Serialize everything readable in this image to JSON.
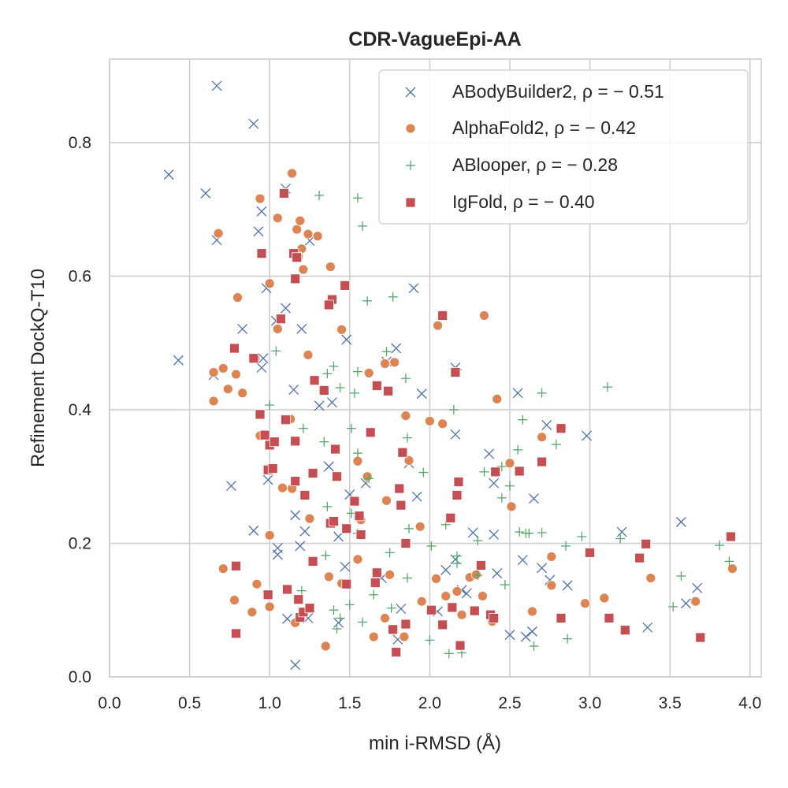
{
  "chart_data": {
    "type": "scatter",
    "title": "CDR-VagueEpi-AA",
    "xlabel": "min i-RMSD (Å)",
    "ylabel": "Refinement DockQ-T10",
    "xlim": [
      0.0,
      4.07
    ],
    "ylim": [
      0.0,
      0.925
    ],
    "xticks": [
      "0.0",
      "0.5",
      "1.0",
      "1.5",
      "2.0",
      "2.5",
      "3.0",
      "3.5",
      "4.0"
    ],
    "yticks": [
      "0.0",
      "0.2",
      "0.4",
      "0.6",
      "0.8"
    ],
    "grid": true,
    "legend_position": "top-right",
    "series": [
      {
        "name": "ABodyBuilder2, ρ = − 0.51",
        "marker": "x",
        "color": "#4c72b0",
        "points": [
          [
            0.67,
            0.885
          ],
          [
            0.9,
            0.828
          ],
          [
            0.37,
            0.752
          ],
          [
            0.6,
            0.724
          ],
          [
            0.67,
            0.654
          ],
          [
            0.93,
            0.667
          ],
          [
            0.95,
            0.697
          ],
          [
            1.1,
            0.731
          ],
          [
            0.98,
            0.582
          ],
          [
            1.25,
            0.653
          ],
          [
            1.1,
            0.552
          ],
          [
            1.04,
            0.533
          ],
          [
            1.2,
            0.521
          ],
          [
            0.83,
            0.521
          ],
          [
            0.43,
            0.474
          ],
          [
            0.65,
            0.452
          ],
          [
            0.95,
            0.463
          ],
          [
            0.96,
            0.477
          ],
          [
            1.15,
            0.43
          ],
          [
            1.31,
            0.406
          ],
          [
            1.39,
            0.411
          ],
          [
            1.48,
            0.505
          ],
          [
            1.73,
            0.472
          ],
          [
            1.79,
            0.492
          ],
          [
            1.9,
            0.582
          ],
          [
            1.95,
            0.424
          ],
          [
            1.37,
            0.315
          ],
          [
            0.99,
            0.295
          ],
          [
            0.76,
            0.286
          ],
          [
            1.5,
            0.273
          ],
          [
            1.16,
            0.242
          ],
          [
            1.22,
            0.218
          ],
          [
            0.9,
            0.219
          ],
          [
            1.05,
            0.193
          ],
          [
            1.05,
            0.183
          ],
          [
            1.19,
            0.196
          ],
          [
            1.43,
            0.21
          ],
          [
            1.11,
            0.087
          ],
          [
            1.24,
            0.088
          ],
          [
            1.43,
            0.081
          ],
          [
            1.16,
            0.018
          ],
          [
            1.47,
            0.165
          ],
          [
            1.6,
            0.29
          ],
          [
            1.7,
            0.148
          ],
          [
            1.87,
            0.32
          ],
          [
            1.92,
            0.27
          ],
          [
            1.82,
            0.102
          ],
          [
            1.8,
            0.056
          ],
          [
            2.05,
            0.098
          ],
          [
            2.1,
            0.16
          ],
          [
            2.16,
            0.176
          ],
          [
            2.2,
            0.13
          ],
          [
            2.23,
            0.125
          ],
          [
            2.27,
            0.216
          ],
          [
            2.16,
            0.463
          ],
          [
            2.16,
            0.363
          ],
          [
            2.37,
            0.334
          ],
          [
            2.4,
            0.29
          ],
          [
            2.4,
            0.213
          ],
          [
            2.42,
            0.155
          ],
          [
            2.5,
            0.063
          ],
          [
            2.55,
            0.425
          ],
          [
            2.58,
            0.175
          ],
          [
            2.6,
            0.06
          ],
          [
            2.64,
            0.068
          ],
          [
            2.65,
            0.267
          ],
          [
            2.7,
            0.163
          ],
          [
            2.73,
            0.377
          ],
          [
            2.75,
            0.145
          ],
          [
            2.86,
            0.137
          ],
          [
            2.98,
            0.361
          ],
          [
            3.2,
            0.217
          ],
          [
            3.36,
            0.074
          ],
          [
            3.57,
            0.232
          ],
          [
            3.6,
            0.11
          ],
          [
            3.67,
            0.133
          ]
        ]
      },
      {
        "name": "AlphaFold2, ρ = − 0.42",
        "marker": "circle",
        "color": "#dd8452",
        "points": [
          [
            0.68,
            0.664
          ],
          [
            0.94,
            0.716
          ],
          [
            1.14,
            0.754
          ],
          [
            1.05,
            0.687
          ],
          [
            1.17,
            0.67
          ],
          [
            1.19,
            0.683
          ],
          [
            1.24,
            0.663
          ],
          [
            1.3,
            0.66
          ],
          [
            1.2,
            0.641
          ],
          [
            1.21,
            0.61
          ],
          [
            1.38,
            0.614
          ],
          [
            1.0,
            0.589
          ],
          [
            0.8,
            0.568
          ],
          [
            1.18,
            0.63
          ],
          [
            1.05,
            0.521
          ],
          [
            1.24,
            0.482
          ],
          [
            1.45,
            0.52
          ],
          [
            0.91,
            0.477
          ],
          [
            0.65,
            0.456
          ],
          [
            0.71,
            0.462
          ],
          [
            0.79,
            0.453
          ],
          [
            0.83,
            0.425
          ],
          [
            0.74,
            0.431
          ],
          [
            0.65,
            0.413
          ],
          [
            0.94,
            0.361
          ],
          [
            1.13,
            0.386
          ],
          [
            1.08,
            0.283
          ],
          [
            1.14,
            0.282
          ],
          [
            1.25,
            0.237
          ],
          [
            1.0,
            0.212
          ],
          [
            1.55,
            0.323
          ],
          [
            1.61,
            0.3
          ],
          [
            1.62,
            0.455
          ],
          [
            1.72,
            0.469
          ],
          [
            1.78,
            0.471
          ],
          [
            1.87,
            0.324
          ],
          [
            1.85,
            0.391
          ],
          [
            2.05,
            0.526
          ],
          [
            2.0,
            0.383
          ],
          [
            2.08,
            0.379
          ],
          [
            2.34,
            0.541
          ],
          [
            2.42,
            0.416
          ],
          [
            1.57,
            0.235
          ],
          [
            1.55,
            0.176
          ],
          [
            1.73,
            0.264
          ],
          [
            1.94,
            0.225
          ],
          [
            0.71,
            0.162
          ],
          [
            0.78,
            0.115
          ],
          [
            0.89,
            0.097
          ],
          [
            0.92,
            0.139
          ],
          [
            1.0,
            0.105
          ],
          [
            1.16,
            0.081
          ],
          [
            1.35,
            0.046
          ],
          [
            1.37,
            0.15
          ],
          [
            1.45,
            0.14
          ],
          [
            1.65,
            0.06
          ],
          [
            1.72,
            0.088
          ],
          [
            1.75,
            0.153
          ],
          [
            1.84,
            0.06
          ],
          [
            1.95,
            0.113
          ],
          [
            2.04,
            0.147
          ],
          [
            2.1,
            0.121
          ],
          [
            2.17,
            0.128
          ],
          [
            2.2,
            0.093
          ],
          [
            2.25,
            0.149
          ],
          [
            2.29,
            0.153
          ],
          [
            2.33,
            0.121
          ],
          [
            2.39,
            0.083
          ],
          [
            2.5,
            0.32
          ],
          [
            2.51,
            0.255
          ],
          [
            2.64,
            0.098
          ],
          [
            2.7,
            0.359
          ],
          [
            2.76,
            0.18
          ],
          [
            2.76,
            0.137
          ],
          [
            2.97,
            0.11
          ],
          [
            3.09,
            0.118
          ],
          [
            3.38,
            0.148
          ],
          [
            3.66,
            0.113
          ],
          [
            3.89,
            0.162
          ]
        ]
      },
      {
        "name": "ABlooper, ρ = − 0.28",
        "marker": "plus",
        "color": "#55a868",
        "points": [
          [
            1.31,
            0.721
          ],
          [
            1.55,
            0.717
          ],
          [
            1.58,
            0.675
          ],
          [
            1.61,
            0.563
          ],
          [
            1.77,
            0.569
          ],
          [
            1.04,
            0.488
          ],
          [
            1.36,
            0.454
          ],
          [
            1.4,
            0.465
          ],
          [
            1.44,
            0.433
          ],
          [
            1.55,
            0.457
          ],
          [
            1.53,
            0.425
          ],
          [
            1.73,
            0.487
          ],
          [
            1.85,
            0.447
          ],
          [
            1.0,
            0.407
          ],
          [
            1.21,
            0.372
          ],
          [
            1.34,
            0.352
          ],
          [
            1.51,
            0.372
          ],
          [
            1.55,
            0.335
          ],
          [
            1.62,
            0.297
          ],
          [
            1.86,
            0.358
          ],
          [
            1.96,
            0.306
          ],
          [
            2.15,
            0.4
          ],
          [
            2.17,
            0.46
          ],
          [
            2.34,
            0.307
          ],
          [
            2.45,
            0.315
          ],
          [
            2.5,
            0.286
          ],
          [
            2.55,
            0.34
          ],
          [
            2.58,
            0.385
          ],
          [
            2.7,
            0.425
          ],
          [
            2.79,
            0.348
          ],
          [
            3.11,
            0.434
          ],
          [
            1.36,
            0.255
          ],
          [
            1.51,
            0.245
          ],
          [
            1.55,
            0.215
          ],
          [
            1.75,
            0.186
          ],
          [
            1.87,
            0.222
          ],
          [
            2.01,
            0.196
          ],
          [
            2.1,
            0.228
          ],
          [
            2.17,
            0.181
          ],
          [
            2.3,
            0.204
          ],
          [
            2.45,
            0.268
          ],
          [
            2.56,
            0.217
          ],
          [
            2.62,
            0.215
          ],
          [
            2.7,
            0.216
          ],
          [
            2.85,
            0.196
          ],
          [
            2.95,
            0.21
          ],
          [
            3.19,
            0.207
          ],
          [
            1.4,
            0.1
          ],
          [
            1.42,
            0.072
          ],
          [
            1.44,
            0.088
          ],
          [
            1.5,
            0.108
          ],
          [
            1.58,
            0.082
          ],
          [
            1.65,
            0.123
          ],
          [
            1.76,
            0.103
          ],
          [
            1.86,
            0.148
          ],
          [
            2.0,
            0.055
          ],
          [
            2.12,
            0.035
          ],
          [
            2.2,
            0.036
          ],
          [
            2.3,
            0.152
          ],
          [
            2.47,
            0.138
          ],
          [
            2.65,
            0.046
          ],
          [
            2.86,
            0.057
          ],
          [
            3.52,
            0.105
          ],
          [
            3.57,
            0.151
          ],
          [
            3.81,
            0.197
          ],
          [
            3.87,
            0.173
          ],
          [
            1.2,
            0.129
          ],
          [
            1.35,
            0.182
          ],
          [
            2.17,
            0.17
          ],
          [
            2.6,
            0.215
          ]
        ]
      },
      {
        "name": "IgFold, ρ = − 0.40",
        "marker": "square",
        "color": "#c44e52",
        "points": [
          [
            1.09,
            0.724
          ],
          [
            0.95,
            0.634
          ],
          [
            1.15,
            0.634
          ],
          [
            1.17,
            0.628
          ],
          [
            1.16,
            0.596
          ],
          [
            1.47,
            0.586
          ],
          [
            1.39,
            0.565
          ],
          [
            1.37,
            0.557
          ],
          [
            1.07,
            0.536
          ],
          [
            0.78,
            0.492
          ],
          [
            0.9,
            0.477
          ],
          [
            1.28,
            0.444
          ],
          [
            1.34,
            0.429
          ],
          [
            1.67,
            0.436
          ],
          [
            1.74,
            0.428
          ],
          [
            2.08,
            0.541
          ],
          [
            2.16,
            0.456
          ],
          [
            0.94,
            0.393
          ],
          [
            1.1,
            0.385
          ],
          [
            0.97,
            0.362
          ],
          [
            1.0,
            0.347
          ],
          [
            1.03,
            0.352
          ],
          [
            1.16,
            0.353
          ],
          [
            1.41,
            0.341
          ],
          [
            1.63,
            0.366
          ],
          [
            2.82,
            0.372
          ],
          [
            1.83,
            0.336
          ],
          [
            0.99,
            0.31
          ],
          [
            1.02,
            0.312
          ],
          [
            1.16,
            0.293
          ],
          [
            1.27,
            0.305
          ],
          [
            1.42,
            0.3
          ],
          [
            1.22,
            0.272
          ],
          [
            1.81,
            0.282
          ],
          [
            2.18,
            0.292
          ],
          [
            2.17,
            0.272
          ],
          [
            2.41,
            0.307
          ],
          [
            2.56,
            0.308
          ],
          [
            2.7,
            0.322
          ],
          [
            1.38,
            0.23
          ],
          [
            1.4,
            0.233
          ],
          [
            1.53,
            0.263
          ],
          [
            1.56,
            0.241
          ],
          [
            1.57,
            0.213
          ],
          [
            1.48,
            0.222
          ],
          [
            1.82,
            0.257
          ],
          [
            1.85,
            0.2
          ],
          [
            2.13,
            0.238
          ],
          [
            0.79,
            0.166
          ],
          [
            0.79,
            0.065
          ],
          [
            0.99,
            0.123
          ],
          [
            1.11,
            0.131
          ],
          [
            1.18,
            0.116
          ],
          [
            1.19,
            0.089
          ],
          [
            1.21,
            0.097
          ],
          [
            1.25,
            0.103
          ],
          [
            1.27,
            0.173
          ],
          [
            1.48,
            0.139
          ],
          [
            1.66,
            0.141
          ],
          [
            1.67,
            0.156
          ],
          [
            1.77,
            0.071
          ],
          [
            1.79,
            0.037
          ],
          [
            1.85,
            0.079
          ],
          [
            2.01,
            0.1
          ],
          [
            2.08,
            0.078
          ],
          [
            2.14,
            0.104
          ],
          [
            2.19,
            0.047
          ],
          [
            2.28,
            0.099
          ],
          [
            2.32,
            0.167
          ],
          [
            2.38,
            0.093
          ],
          [
            2.4,
            0.088
          ],
          [
            2.82,
            0.088
          ],
          [
            3.0,
            0.186
          ],
          [
            3.12,
            0.088
          ],
          [
            3.22,
            0.07
          ],
          [
            3.31,
            0.178
          ],
          [
            3.35,
            0.199
          ],
          [
            3.69,
            0.059
          ],
          [
            3.88,
            0.21
          ]
        ]
      }
    ]
  }
}
